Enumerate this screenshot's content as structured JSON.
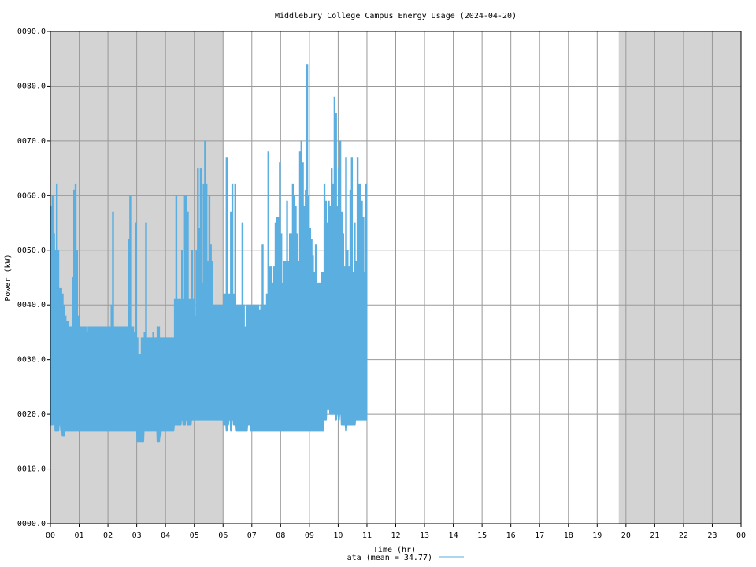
{
  "chart_data": {
    "type": "line",
    "title": "Middlebury College Campus Energy Usage (2024-04-20)",
    "xlabel": "Time (hr)",
    "ylabel": "Power (kW)",
    "xlim": [
      0,
      24
    ],
    "ylim": [
      0,
      90
    ],
    "x_ticks": [
      "00",
      "01",
      "02",
      "03",
      "04",
      "05",
      "06",
      "07",
      "08",
      "09",
      "10",
      "11",
      "12",
      "13",
      "14",
      "15",
      "16",
      "17",
      "18",
      "19",
      "20",
      "21",
      "22",
      "23",
      "00"
    ],
    "y_ticks": [
      "0000.0",
      "0010.0",
      "0020.0",
      "0030.0",
      "0040.0",
      "0050.0",
      "0060.0",
      "0070.0",
      "0080.0",
      "0090.0"
    ],
    "y_tick_values": [
      0,
      10,
      20,
      30,
      40,
      50,
      60,
      70,
      80,
      90
    ],
    "grid": true,
    "legend_position": "bottom-center",
    "line_color": "#5aaee0",
    "night_shading_color": "#d3d3d3",
    "night_periods": [
      [
        0,
        6.0
      ],
      [
        19.75,
        24
      ]
    ],
    "series": [
      {
        "name": "ata (mean = 34.77)",
        "sample_interval_hr": 0.05,
        "ranges": [
          [
            18,
            58
          ],
          [
            18,
            60
          ],
          [
            20,
            53
          ],
          [
            17,
            50
          ],
          [
            17,
            62
          ],
          [
            17,
            50
          ],
          [
            18,
            43
          ],
          [
            17,
            43
          ],
          [
            16,
            42
          ],
          [
            16,
            40
          ],
          [
            17,
            38
          ],
          [
            17,
            37
          ],
          [
            17,
            37
          ],
          [
            17,
            36
          ],
          [
            17,
            36
          ],
          [
            17,
            45
          ],
          [
            17,
            61
          ],
          [
            17,
            62
          ],
          [
            17,
            50
          ],
          [
            17,
            38
          ],
          [
            17,
            36
          ],
          [
            17,
            36
          ],
          [
            17,
            36
          ],
          [
            17,
            36
          ],
          [
            17,
            36
          ],
          [
            17,
            35
          ],
          [
            17,
            36
          ],
          [
            17,
            36
          ],
          [
            17,
            36
          ],
          [
            17,
            36
          ],
          [
            17,
            36
          ],
          [
            17,
            36
          ],
          [
            17,
            36
          ],
          [
            17,
            36
          ],
          [
            17,
            36
          ],
          [
            17,
            36
          ],
          [
            17,
            36
          ],
          [
            17,
            36
          ],
          [
            17,
            36
          ],
          [
            17,
            36
          ],
          [
            17,
            36
          ],
          [
            17,
            36
          ],
          [
            17,
            40
          ],
          [
            17,
            57
          ],
          [
            17,
            36
          ],
          [
            17,
            36
          ],
          [
            17,
            36
          ],
          [
            17,
            36
          ],
          [
            17,
            36
          ],
          [
            17,
            36
          ],
          [
            17,
            36
          ],
          [
            17,
            36
          ],
          [
            17,
            36
          ],
          [
            17,
            36
          ],
          [
            17,
            52
          ],
          [
            17,
            60
          ],
          [
            17,
            36
          ],
          [
            17,
            36
          ],
          [
            17,
            35
          ],
          [
            17,
            55
          ],
          [
            15,
            34
          ],
          [
            15,
            31
          ],
          [
            15,
            31
          ],
          [
            15,
            34
          ],
          [
            15,
            34
          ],
          [
            17,
            35
          ],
          [
            17,
            55
          ],
          [
            17,
            34
          ],
          [
            17,
            34
          ],
          [
            17,
            34
          ],
          [
            17,
            34
          ],
          [
            17,
            35
          ],
          [
            17,
            34
          ],
          [
            17,
            34
          ],
          [
            15,
            36
          ],
          [
            15,
            36
          ],
          [
            16,
            34
          ],
          [
            17,
            34
          ],
          [
            17,
            34
          ],
          [
            17,
            34
          ],
          [
            17,
            34
          ],
          [
            17,
            34
          ],
          [
            17,
            34
          ],
          [
            17,
            34
          ],
          [
            17,
            34
          ],
          [
            17,
            34
          ],
          [
            18,
            41
          ],
          [
            18,
            60
          ],
          [
            18,
            41
          ],
          [
            18,
            41
          ],
          [
            18,
            41
          ],
          [
            19,
            50
          ],
          [
            18,
            41
          ],
          [
            18,
            60
          ],
          [
            19,
            60
          ],
          [
            18,
            57
          ],
          [
            18,
            41
          ],
          [
            18,
            41
          ],
          [
            19,
            50
          ],
          [
            19,
            41
          ],
          [
            19,
            38
          ],
          [
            19,
            50
          ],
          [
            19,
            65
          ],
          [
            19,
            54
          ],
          [
            19,
            65
          ],
          [
            19,
            44
          ],
          [
            19,
            62
          ],
          [
            19,
            70
          ],
          [
            19,
            62
          ],
          [
            19,
            48
          ],
          [
            19,
            60
          ],
          [
            19,
            51
          ],
          [
            19,
            48
          ],
          [
            19,
            40
          ],
          [
            19,
            40
          ],
          [
            19,
            40
          ],
          [
            19,
            40
          ],
          [
            19,
            40
          ],
          [
            19,
            40
          ],
          [
            19,
            40
          ],
          [
            18,
            42
          ],
          [
            18,
            42
          ],
          [
            17,
            67
          ],
          [
            18,
            42
          ],
          [
            19,
            42
          ],
          [
            17,
            57
          ],
          [
            19,
            62
          ],
          [
            18,
            42
          ],
          [
            18,
            62
          ],
          [
            17,
            40
          ],
          [
            17,
            40
          ],
          [
            17,
            40
          ],
          [
            17,
            40
          ],
          [
            17,
            55
          ],
          [
            17,
            40
          ],
          [
            17,
            36
          ],
          [
            17,
            40
          ],
          [
            18,
            40
          ],
          [
            18,
            40
          ],
          [
            17,
            40
          ],
          [
            17,
            40
          ],
          [
            17,
            40
          ],
          [
            17,
            40
          ],
          [
            17,
            40
          ],
          [
            17,
            40
          ],
          [
            17,
            39
          ],
          [
            17,
            40
          ],
          [
            17,
            51
          ],
          [
            17,
            40
          ],
          [
            17,
            40
          ],
          [
            17,
            42
          ],
          [
            17,
            68
          ],
          [
            17,
            47
          ],
          [
            17,
            47
          ],
          [
            17,
            44
          ],
          [
            17,
            47
          ],
          [
            17,
            55
          ],
          [
            17,
            56
          ],
          [
            17,
            56
          ],
          [
            17,
            66
          ],
          [
            17,
            53
          ],
          [
            17,
            44
          ],
          [
            17,
            48
          ],
          [
            17,
            48
          ],
          [
            17,
            59
          ],
          [
            17,
            48
          ],
          [
            17,
            53
          ],
          [
            17,
            53
          ],
          [
            17,
            62
          ],
          [
            17,
            60
          ],
          [
            17,
            58
          ],
          [
            17,
            53
          ],
          [
            17,
            48
          ],
          [
            17,
            68
          ],
          [
            17,
            70
          ],
          [
            17,
            66
          ],
          [
            17,
            58
          ],
          [
            17,
            61
          ],
          [
            17,
            84
          ],
          [
            17,
            60
          ],
          [
            17,
            54
          ],
          [
            17,
            52
          ],
          [
            17,
            49
          ],
          [
            17,
            46
          ],
          [
            17,
            51
          ],
          [
            17,
            44
          ],
          [
            17,
            44
          ],
          [
            17,
            44
          ],
          [
            17,
            46
          ],
          [
            17,
            46
          ],
          [
            19,
            62
          ],
          [
            19,
            59
          ],
          [
            21,
            55
          ],
          [
            21,
            59
          ],
          [
            20,
            58
          ],
          [
            20,
            65
          ],
          [
            20,
            62
          ],
          [
            20,
            78
          ],
          [
            19,
            75
          ],
          [
            20,
            58
          ],
          [
            19,
            65
          ],
          [
            20,
            70
          ],
          [
            18,
            57
          ],
          [
            18,
            53
          ],
          [
            18,
            47
          ],
          [
            17,
            67
          ],
          [
            18,
            50
          ],
          [
            18,
            47
          ],
          [
            18,
            61
          ],
          [
            18,
            67
          ],
          [
            18,
            46
          ],
          [
            18,
            55
          ],
          [
            19,
            48
          ],
          [
            19,
            67
          ],
          [
            19,
            62
          ],
          [
            19,
            62
          ],
          [
            19,
            59
          ],
          [
            19,
            56
          ],
          [
            19,
            46
          ],
          [
            19,
            62
          ]
        ]
      }
    ]
  }
}
